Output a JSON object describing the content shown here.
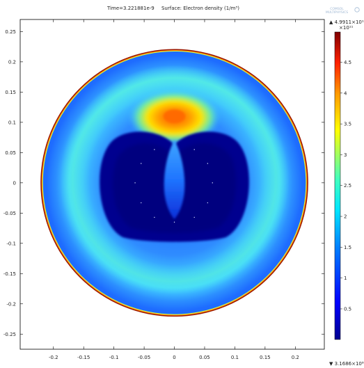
{
  "chart_data": {
    "type": "heatmap",
    "title": "Time=3.221881e-9",
    "subtitle": "Surface: Electron density (1/m³)",
    "xlabel": "",
    "ylabel": "",
    "xlim": [
      -0.255,
      0.248
    ],
    "ylim": [
      -0.275,
      0.27
    ],
    "x_ticks": [
      "-0.2",
      "-0.15",
      "-0.1",
      "-0.05",
      "0",
      "0.05",
      "0.1",
      "0.15",
      "0.2"
    ],
    "x_tick_values": [
      -0.2,
      -0.15,
      -0.1,
      -0.05,
      0,
      0.05,
      0.1,
      0.15,
      0.2
    ],
    "y_ticks": [
      "0.25",
      "0.2",
      "0.15",
      "0.1",
      "0.05",
      "0",
      "-0.05",
      "-0.1",
      "-0.15",
      "-0.2",
      "-0.25"
    ],
    "y_tick_values": [
      0.25,
      0.2,
      0.15,
      0.1,
      0.05,
      0,
      -0.05,
      -0.1,
      -0.15,
      -0.2,
      -0.25
    ],
    "domain": {
      "shape": "circle",
      "center": [
        0,
        0
      ],
      "radius": 0.22
    },
    "colorbar": {
      "max_label": "▲ 4.9911×10¹¹",
      "exponent_label": "×10¹¹",
      "min_label": "▼ 3.1686×10⁸",
      "ticks": [
        "4.5",
        "4",
        "3.5",
        "3",
        "2.5",
        "2",
        "1.5",
        "1",
        "0.5"
      ],
      "tick_values": [
        4.5,
        4,
        3.5,
        3,
        2.5,
        2,
        1.5,
        1,
        0.5
      ],
      "range": [
        0.0031686,
        4.9911
      ],
      "colormap": "rainbow"
    },
    "features": [
      {
        "name": "outer-rim",
        "description": "thin high-density ring at r = 0.22",
        "value": 4.9
      },
      {
        "name": "hot-spot",
        "center": [
          0,
          0.11
        ],
        "value": 3.8
      },
      {
        "name": "low-density-core",
        "extent": [
          [
            -0.12,
            0.12
          ],
          [
            -0.1,
            0.09
          ]
        ],
        "value": 0.05
      },
      {
        "name": "central-jet",
        "center": [
          0,
          0
        ],
        "value": 1.0
      }
    ]
  },
  "logo": {
    "line1": "COMSOL",
    "line2": "MULTIPHYSICS"
  }
}
